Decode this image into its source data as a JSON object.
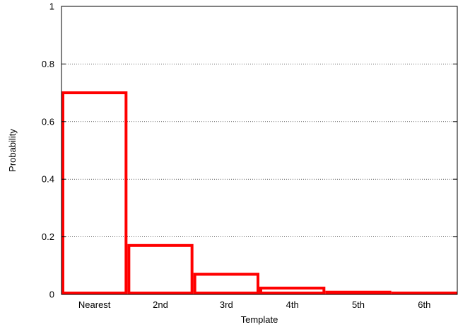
{
  "chart_data": {
    "type": "bar",
    "categories": [
      "Nearest",
      "2nd",
      "3rd",
      "4th",
      "5th",
      "6th"
    ],
    "values": [
      0.7,
      0.17,
      0.07,
      0.022,
      0.008,
      0.005
    ],
    "xlabel": "Template",
    "ylabel": "Probability",
    "ylim": [
      0,
      1
    ],
    "yticks": [
      "0",
      "0.2",
      "0.4",
      "0.6",
      "0.8",
      "1"
    ],
    "ytick_values": [
      0,
      0.2,
      0.4,
      0.6,
      0.8,
      1
    ],
    "grid": true,
    "bar_color": "#ff0000"
  }
}
